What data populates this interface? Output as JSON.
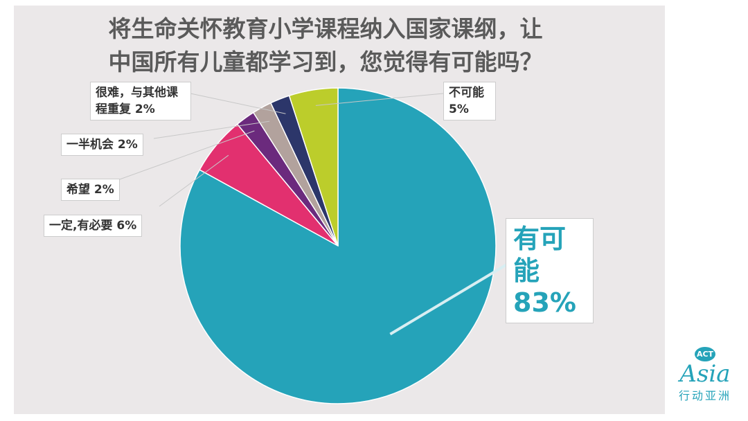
{
  "chart_data": {
    "type": "pie",
    "title": "将生命关怀教育小学课程纳入国家课纲，让中国所有儿童都学习到，您觉得有可能吗？",
    "categories": [
      "有可能",
      "一定,有必要",
      "希望",
      "一半机会",
      "很难，与其他课程重复",
      "不可能"
    ],
    "values": [
      83,
      6,
      2,
      2,
      2,
      5
    ],
    "value_labels": [
      "83%",
      "6%",
      "2%",
      "2%",
      "2%",
      "5%"
    ],
    "colors": [
      "#25a3b9",
      "#e2306f",
      "#6b2a7d",
      "#b2a29d",
      "#2c366a",
      "#bccd2b"
    ]
  },
  "logo": {
    "badge": "ACT",
    "name": "Asia",
    "chinese": "行动亚洲"
  }
}
